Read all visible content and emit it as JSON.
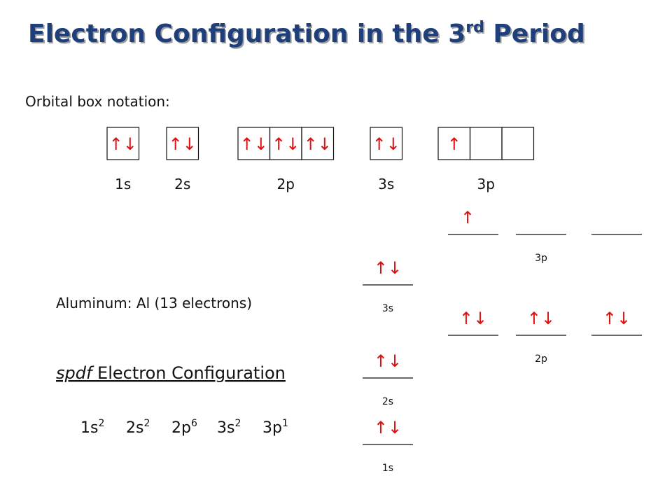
{
  "title": {
    "main": "Electron Configuration in the 3",
    "sup": "rd",
    "end": " Period"
  },
  "orbital_box": {
    "heading": "Orbital box notation:",
    "groups": [
      {
        "label": "1s",
        "boxes": [
          "↑↓"
        ]
      },
      {
        "label": "2s",
        "boxes": [
          "↑↓"
        ]
      },
      {
        "label": "2p",
        "boxes": [
          "↑↓",
          "↑↓",
          "↑↓"
        ]
      },
      {
        "label": "3s",
        "boxes": [
          "↑↓"
        ]
      },
      {
        "label": "3p",
        "boxes": [
          "↑",
          null,
          null
        ]
      }
    ]
  },
  "element": "Aluminum: Al (13 electrons)",
  "spdf": {
    "italic": "spdf",
    "rest": " Electron Configuration",
    "terms": [
      {
        "orbital": "1s",
        "count": 2
      },
      {
        "orbital": "2s",
        "count": 2
      },
      {
        "orbital": "2p",
        "count": 6
      },
      {
        "orbital": "3s",
        "count": 2
      },
      {
        "orbital": "3p",
        "count": 1
      }
    ]
  },
  "energy_diagram": {
    "levels": [
      {
        "label": "1s",
        "orbitals": [
          "↑↓"
        ]
      },
      {
        "label": "2s",
        "orbitals": [
          "↑↓"
        ]
      },
      {
        "label": "2p",
        "orbitals": [
          "↑↓",
          "↑↓",
          "↑↓"
        ]
      },
      {
        "label": "3s",
        "orbitals": [
          "↑↓"
        ]
      },
      {
        "label": "3p",
        "orbitals": [
          "↑",
          null,
          null
        ]
      }
    ]
  }
}
